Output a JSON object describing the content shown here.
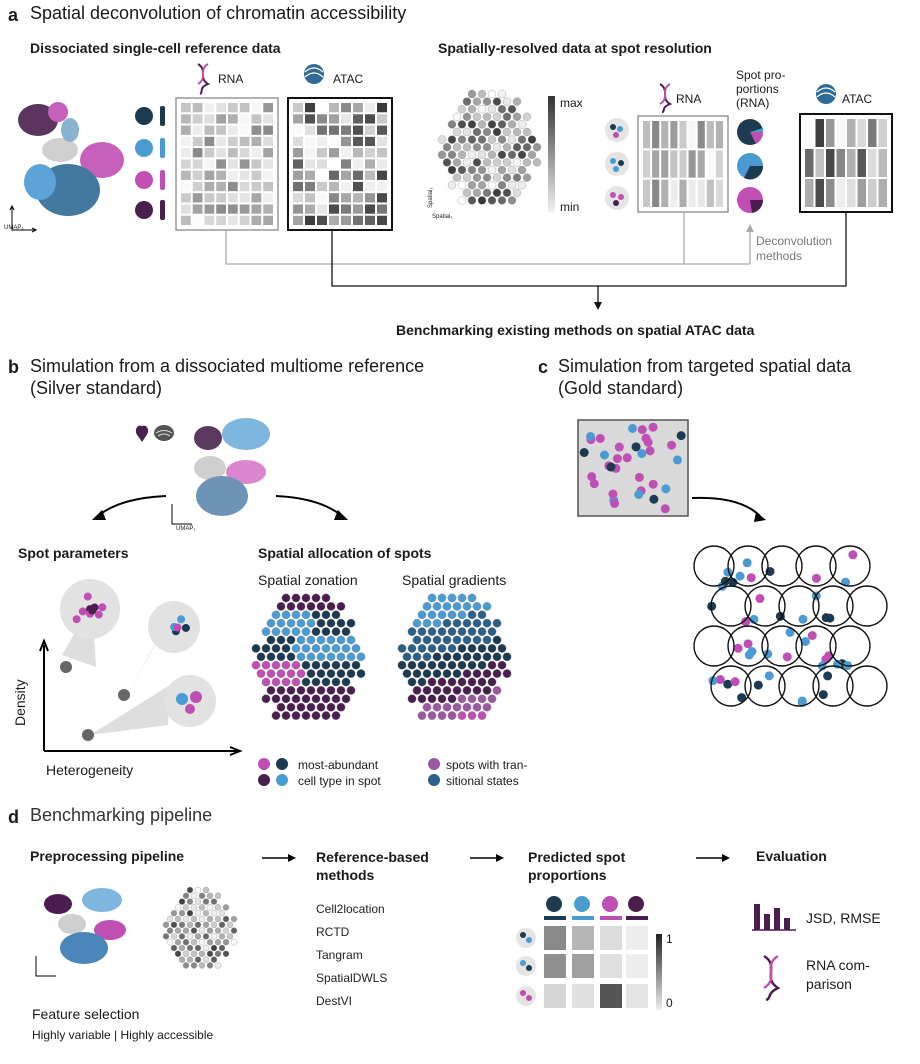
{
  "panel_a": {
    "letter": "a",
    "title": "Spatial deconvolution of chromatin accessibility",
    "left_heading": "Dissociated single-cell reference data",
    "right_heading": "Spatially-resolved data at spot resolution",
    "rna_label": "RNA",
    "atac_label": "ATAC",
    "rna_label_right": "RNA",
    "atac_label_right": "ATAC",
    "spot_proportions_label": "Spot pro-\nportions\n(RNA)",
    "scale_max": "max",
    "scale_min": "min",
    "umap1": "UMAP₁",
    "umap2": "UMAP₂",
    "spatial1": "Spatial₁",
    "spatial2": "Spatial₂",
    "deconvolution_label": "Deconvolution\nmethods",
    "benchmark_label": "Benchmarking existing methods on spatial ATAC data"
  },
  "panel_b": {
    "letter": "b",
    "title": "Simulation from a dissociated multiome reference\n(Silver standard)",
    "spot_params_heading": "Spot parameters",
    "alloc_heading": "Spatial allocation of spots",
    "zonation_label": "Spatial zonation",
    "gradients_label": "Spatial gradients",
    "density_label": "Density",
    "heterogeneity_label": "Heterogeneity",
    "legend_most_abundant_1": "most-abundant",
    "legend_most_abundant_2": "cell type in spot",
    "legend_transitional_1": "spots with tran-",
    "legend_transitional_2": "sitional states"
  },
  "panel_c": {
    "letter": "c",
    "title": "Simulation from targeted spatial data\n(Gold standard)"
  },
  "panel_d": {
    "letter": "d",
    "title": "Benchmarking pipeline",
    "preprocessing_heading": "Preprocessing pipeline",
    "reference_heading": "Reference-based\nmethods",
    "predicted_heading": "Predicted spot\nproportions",
    "evaluation_heading": "Evaluation",
    "methods": [
      "Cell2location",
      "RCTD",
      "Tangram",
      "SpatialDWLS",
      "DestVI"
    ],
    "feature_selection": "Feature selection",
    "feature_options": "Highly variable | Highly accessible",
    "eval_jsd": "JSD, RMSE",
    "eval_rna": "RNA com-\nparison",
    "scale_top": "1",
    "scale_bottom": "0"
  },
  "colors": {
    "magenta": "#c04fb4",
    "dark_purple": "#4a1f4f",
    "light_blue": "#4b9bd3",
    "dark_navy": "#1d3b50",
    "grey": "#8a8a8a"
  }
}
